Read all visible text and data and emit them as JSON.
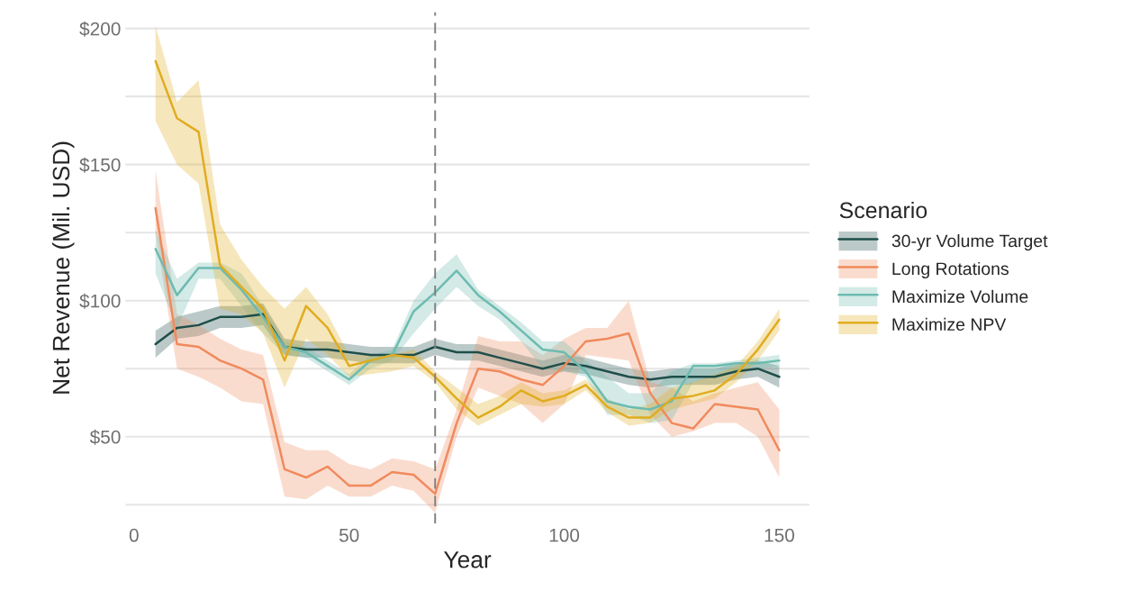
{
  "chart_data": {
    "type": "line",
    "xlabel": "Year",
    "ylabel": "Net Revenue (Mil. USD)",
    "legend_title": "Scenario",
    "legend": "right",
    "grid": "y",
    "x": [
      5,
      10,
      15,
      20,
      25,
      30,
      35,
      40,
      45,
      50,
      55,
      60,
      65,
      70,
      75,
      80,
      85,
      90,
      95,
      100,
      105,
      110,
      115,
      120,
      125,
      130,
      135,
      140,
      145,
      150
    ],
    "xlim": [
      -2,
      157
    ],
    "xticks": [
      0,
      50,
      100,
      150
    ],
    "ylim": [
      18,
      206
    ],
    "yticks": [
      {
        "value": 25,
        "label": null
      },
      {
        "value": 50,
        "label": "$50"
      },
      {
        "value": 75,
        "label": null
      },
      {
        "value": 100,
        "label": "$100"
      },
      {
        "value": 125,
        "label": null
      },
      {
        "value": 150,
        "label": "$150"
      },
      {
        "value": 175,
        "label": null
      },
      {
        "value": 200,
        "label": "$200"
      }
    ],
    "ref_lines": [
      {
        "axis": "x",
        "value": 70,
        "color": "#808080",
        "line_style": "dashed"
      }
    ],
    "series": [
      {
        "name": "30-yr Volume Target",
        "color": "#1f4e4a",
        "values": [
          84,
          90,
          91,
          94,
          94,
          95,
          83,
          82,
          82,
          81,
          80,
          80,
          80,
          83,
          81,
          81,
          79,
          77,
          75,
          77,
          76,
          74,
          72,
          71,
          72,
          72,
          72,
          74,
          75,
          72
        ],
        "lower": [
          79,
          86,
          87,
          90,
          90,
          91,
          80,
          79,
          79,
          78,
          77,
          77,
          77,
          80,
          78,
          78,
          76,
          74,
          72,
          74,
          73,
          71,
          69,
          68,
          69,
          69,
          69,
          71,
          72,
          68
        ],
        "upper": [
          89,
          94,
          96,
          98,
          98,
          99,
          86,
          85,
          85,
          84,
          83,
          83,
          83,
          86,
          84,
          84,
          82,
          80,
          78,
          80,
          79,
          77,
          75,
          74,
          75,
          75,
          75,
          77,
          78,
          76
        ]
      },
      {
        "name": "Long Rotations",
        "color": "#f08a5d",
        "values": [
          134,
          84,
          83,
          78,
          75,
          71,
          38,
          35,
          39,
          32,
          32,
          37,
          36,
          29,
          55,
          75,
          74,
          71,
          69,
          76,
          85,
          86,
          88,
          66,
          55,
          53,
          62,
          61,
          60,
          45
        ],
        "lower": [
          125,
          75,
          72,
          68,
          63,
          62,
          28,
          27,
          32,
          28,
          28,
          32,
          30,
          22,
          50,
          68,
          65,
          62,
          55,
          62,
          80,
          79,
          78,
          58,
          50,
          52,
          55,
          55,
          50,
          35
        ],
        "upper": [
          148,
          95,
          91,
          86,
          82,
          80,
          48,
          45,
          45,
          40,
          38,
          42,
          41,
          38,
          60,
          87,
          85,
          85,
          80,
          86,
          90,
          90,
          100,
          70,
          68,
          63,
          66,
          68,
          70,
          60
        ]
      },
      {
        "name": "Maximize Volume",
        "color": "#6dbbb0",
        "values": [
          119,
          102,
          112,
          112,
          104,
          94,
          83,
          81,
          76,
          71,
          78,
          80,
          96,
          103,
          111,
          102,
          96,
          89,
          82,
          81,
          74,
          63,
          61,
          60,
          63,
          76,
          76,
          77,
          77,
          78
        ],
        "lower": [
          110,
          90,
          108,
          108,
          98,
          88,
          80,
          79,
          74,
          69,
          75,
          78,
          88,
          97,
          105,
          98,
          93,
          85,
          75,
          74,
          72,
          58,
          58,
          55,
          56,
          70,
          72,
          74,
          75,
          76
        ],
        "upper": [
          126,
          108,
          114,
          114,
          110,
          98,
          85,
          83,
          78,
          73,
          80,
          82,
          100,
          110,
          117,
          104,
          98,
          92,
          85,
          85,
          78,
          72,
          66,
          66,
          74,
          77,
          77,
          78,
          79,
          80
        ]
      },
      {
        "name": "Maximize NPV",
        "color": "#e0ac1f",
        "values": [
          188,
          167,
          162,
          113,
          105,
          97,
          78,
          98,
          90,
          76,
          78,
          80,
          79,
          72,
          64,
          57,
          61,
          67,
          63,
          65,
          69,
          61,
          57,
          57,
          64,
          65,
          67,
          73,
          82,
          93
        ],
        "lower": [
          166,
          150,
          143,
          97,
          95,
          88,
          68,
          86,
          80,
          72,
          73,
          74,
          76,
          70,
          60,
          54,
          58,
          62,
          61,
          62,
          67,
          59,
          54,
          55,
          60,
          62,
          64,
          70,
          78,
          89
        ],
        "upper": [
          201,
          173,
          181,
          128,
          115,
          105,
          97,
          105,
          95,
          80,
          80,
          80,
          82,
          74,
          68,
          62,
          65,
          70,
          66,
          67,
          71,
          64,
          60,
          62,
          68,
          70,
          73,
          76,
          85,
          97
        ]
      }
    ]
  }
}
